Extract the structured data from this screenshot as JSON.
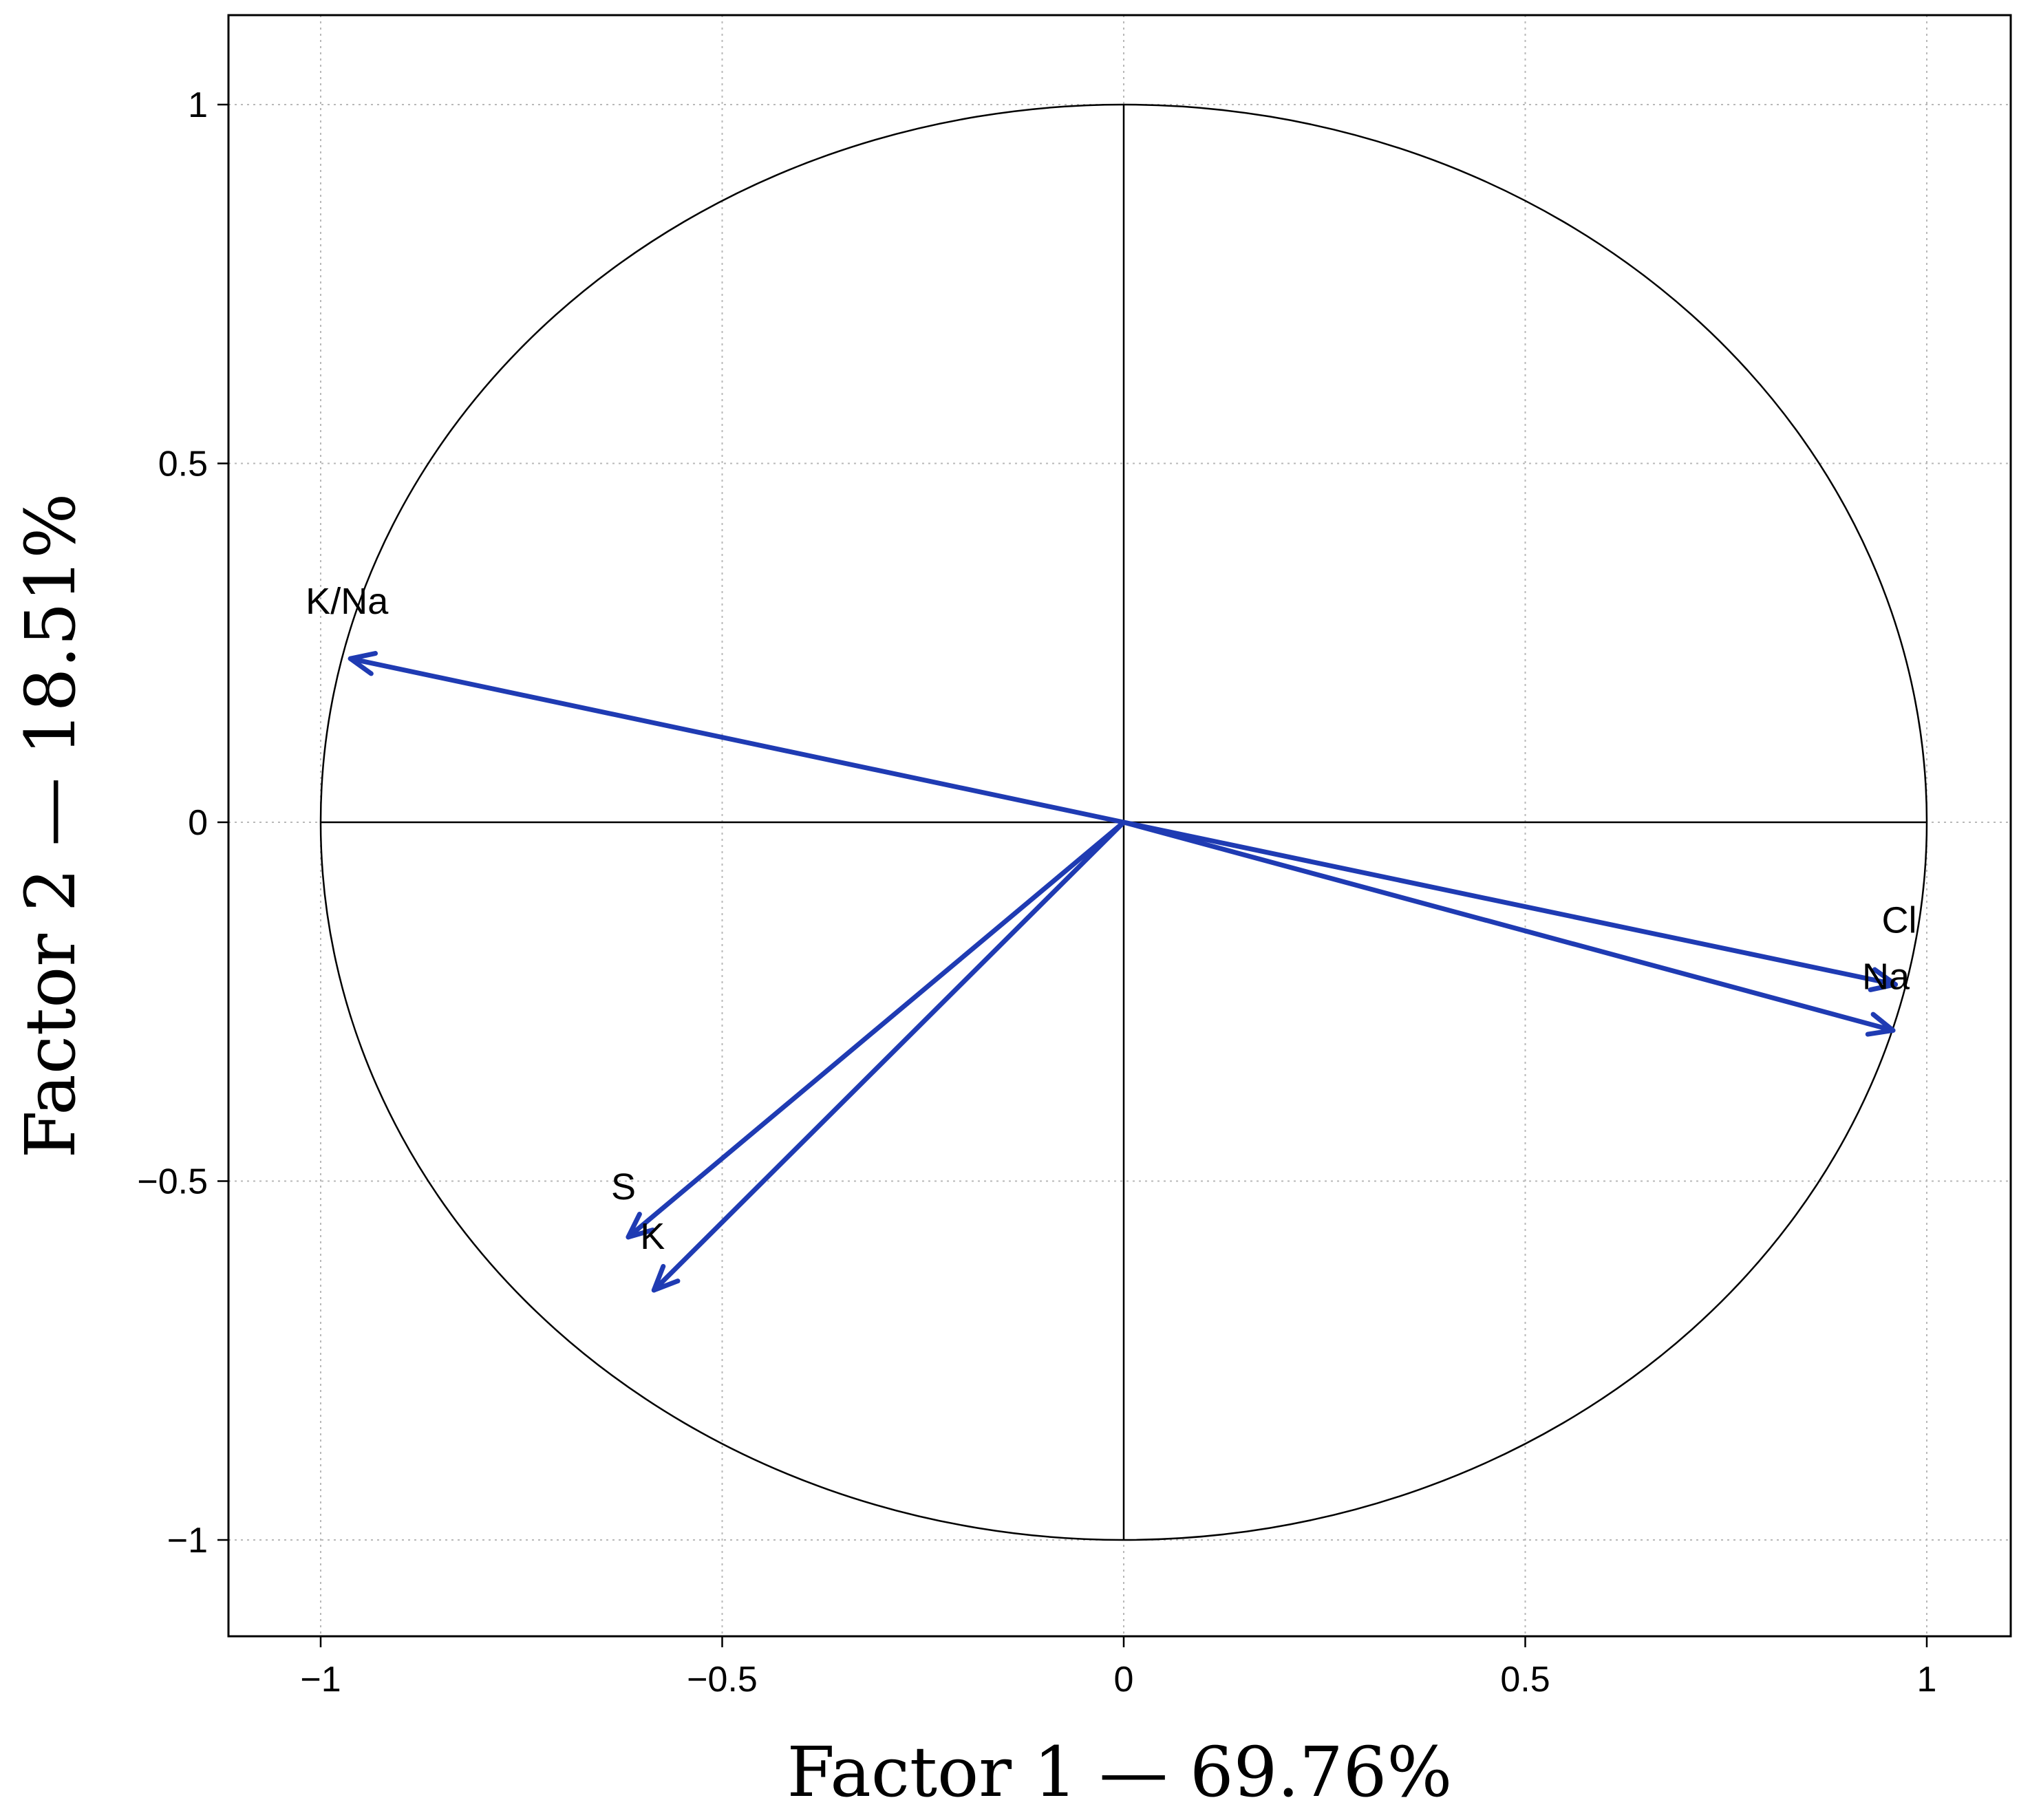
{
  "chart_data": {
    "type": "scatter",
    "xlabel": "Factor 1 — 69.76%",
    "ylabel": "Factor 2 — 18.51%",
    "xlim": [
      -1.12,
      1.12
    ],
    "ylim": [
      -1.13,
      1.13
    ],
    "xticks": [
      -1,
      -0.5,
      0,
      0.5,
      1
    ],
    "yticks": [
      -1,
      -0.5,
      0,
      0.5,
      1
    ],
    "xtick_labels": [
      "−1",
      "−0.5",
      "0",
      "0.5",
      "1"
    ],
    "ytick_labels": [
      "−1",
      "−0.5",
      "0",
      "0.5",
      "1"
    ],
    "grid": true,
    "unit_circle": true,
    "vector_color": "#1f3bb3",
    "vectors": [
      {
        "label": "K/Na",
        "x": -0.963,
        "y": 0.228
      },
      {
        "label": "Cl",
        "x": 0.961,
        "y": -0.226
      },
      {
        "label": "Na",
        "x": 0.958,
        "y": -0.29
      },
      {
        "label": "S",
        "x": -0.617,
        "y": -0.578
      },
      {
        "label": "K",
        "x": -0.585,
        "y": -0.652
      }
    ]
  }
}
